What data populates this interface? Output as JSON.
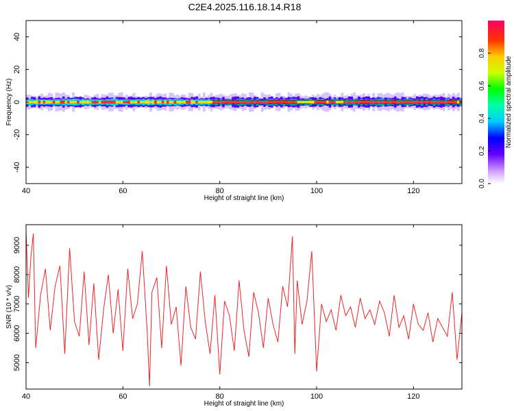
{
  "title": "C2E4.2025.116.18.14.R18",
  "chart_data": [
    {
      "type": "heatmap",
      "xlabel": "Height of straight line (km)",
      "ylabel": "Frequency (Hz)",
      "xlim": [
        40,
        130
      ],
      "ylim": [
        -50,
        50
      ],
      "xticks": [
        40,
        60,
        80,
        100,
        120
      ],
      "yticks": [
        -40,
        -20,
        0,
        20,
        40
      ],
      "colorbar": {
        "label": "Normalized spectral amplitude",
        "range": [
          0,
          1
        ],
        "ticks": [
          "0.0",
          "0.2",
          "0.4",
          "0.6",
          "0.8"
        ],
        "colormap": [
          "#ffffff",
          "#cc99ff",
          "#6600ff",
          "#0000ff",
          "#00ccff",
          "#00ffaa",
          "#00ff00",
          "#ccff00",
          "#ffcc00",
          "#ff3300",
          "#ff0066"
        ]
      },
      "notes": "Narrow band centred on 0 Hz, roughly ±3 Hz wide, spanning 40–130 km; core amplitude high (red) with cyan/blue edges"
    },
    {
      "type": "line",
      "xlabel": "Height of straight line (km)",
      "ylabel": "SNR (10 * v/v)",
      "xlim": [
        40,
        130
      ],
      "ylim": [
        4100,
        9700
      ],
      "xticks": [
        40,
        60,
        80,
        100,
        120
      ],
      "yticks": [
        5000,
        6000,
        7000,
        8000,
        9000
      ],
      "series": [
        {
          "color": "#ee2222",
          "x": [
            40,
            40.5,
            41,
            41.5,
            42,
            43,
            44,
            45,
            46,
            47,
            48,
            49,
            50,
            51,
            52,
            53,
            54,
            55,
            56,
            57,
            58,
            59,
            60,
            61,
            62,
            63,
            64,
            65,
            65.5,
            66,
            67,
            68,
            69,
            70,
            71,
            72,
            73,
            74,
            75,
            76,
            77,
            78,
            79,
            80,
            81,
            82,
            83,
            84,
            85,
            86,
            87,
            88,
            89,
            90,
            91,
            92,
            93,
            94,
            95,
            95.5,
            96,
            97,
            98,
            99,
            100,
            101,
            102,
            103,
            104,
            105,
            106,
            107,
            108,
            109,
            110,
            111,
            112,
            113,
            114,
            115,
            116,
            117,
            118,
            119,
            120,
            121,
            122,
            123,
            124,
            125,
            126,
            127,
            128,
            129,
            130
          ],
          "y": [
            9500,
            7200,
            8600,
            9400,
            5500,
            7300,
            8200,
            6100,
            7600,
            8300,
            5300,
            8900,
            6400,
            5900,
            8100,
            5600,
            7700,
            5100,
            6800,
            8000,
            6000,
            7500,
            5400,
            8200,
            6500,
            7000,
            8800,
            6100,
            4200,
            7400,
            7900,
            5500,
            8300,
            6300,
            6900,
            4900,
            7600,
            6200,
            5800,
            8100,
            6400,
            5300,
            7300,
            4600,
            7100,
            6600,
            5400,
            7800,
            6100,
            5200,
            7400,
            6700,
            5500,
            7200,
            6300,
            5700,
            7600,
            6900,
            9300,
            5300,
            7800,
            6300,
            7100,
            8800,
            4700,
            7000,
            6400,
            6800,
            6100,
            7300,
            6600,
            6900,
            6200,
            7200,
            6500,
            6800,
            6300,
            7100,
            6700,
            5900,
            7300,
            6200,
            6600,
            5800,
            7000,
            6300,
            6100,
            6700,
            5700,
            6500,
            6200,
            5900,
            7400,
            5100,
            6700
          ]
        }
      ]
    }
  ]
}
